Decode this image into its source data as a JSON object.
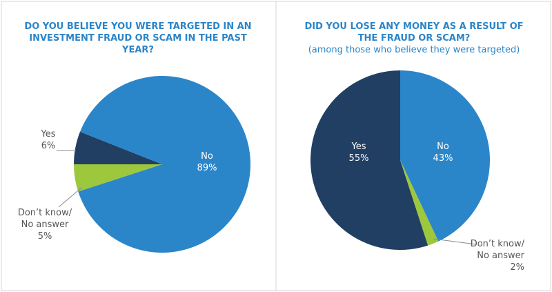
{
  "chart_data": [
    {
      "type": "pie",
      "title": "DO YOU BELIEVE YOU WERE TARGETED IN AN INVESTMENT FRAUD OR SCAM IN THE PAST YEAR?",
      "categories": [
        "Yes",
        "No",
        "Don’t know/\nNo answer"
      ],
      "values": [
        6,
        89,
        5
      ],
      "value_labels": [
        "6%",
        "89%",
        "5%"
      ],
      "colors": [
        "#213f63",
        "#2b85c9",
        "#9dc73c"
      ]
    },
    {
      "type": "pie",
      "title": "DID YOU LOSE ANY MONEY AS A RESULT OF THE FRAUD OR SCAM?",
      "subtitle": "(among those who believe they were targeted)",
      "categories": [
        "No",
        "Don’t know/\nNo answer",
        "Yes"
      ],
      "values": [
        43,
        2,
        55
      ],
      "value_labels": [
        "43%",
        "2%",
        "55%"
      ],
      "colors": [
        "#2b85c9",
        "#9dc73c",
        "#213f63"
      ]
    }
  ]
}
